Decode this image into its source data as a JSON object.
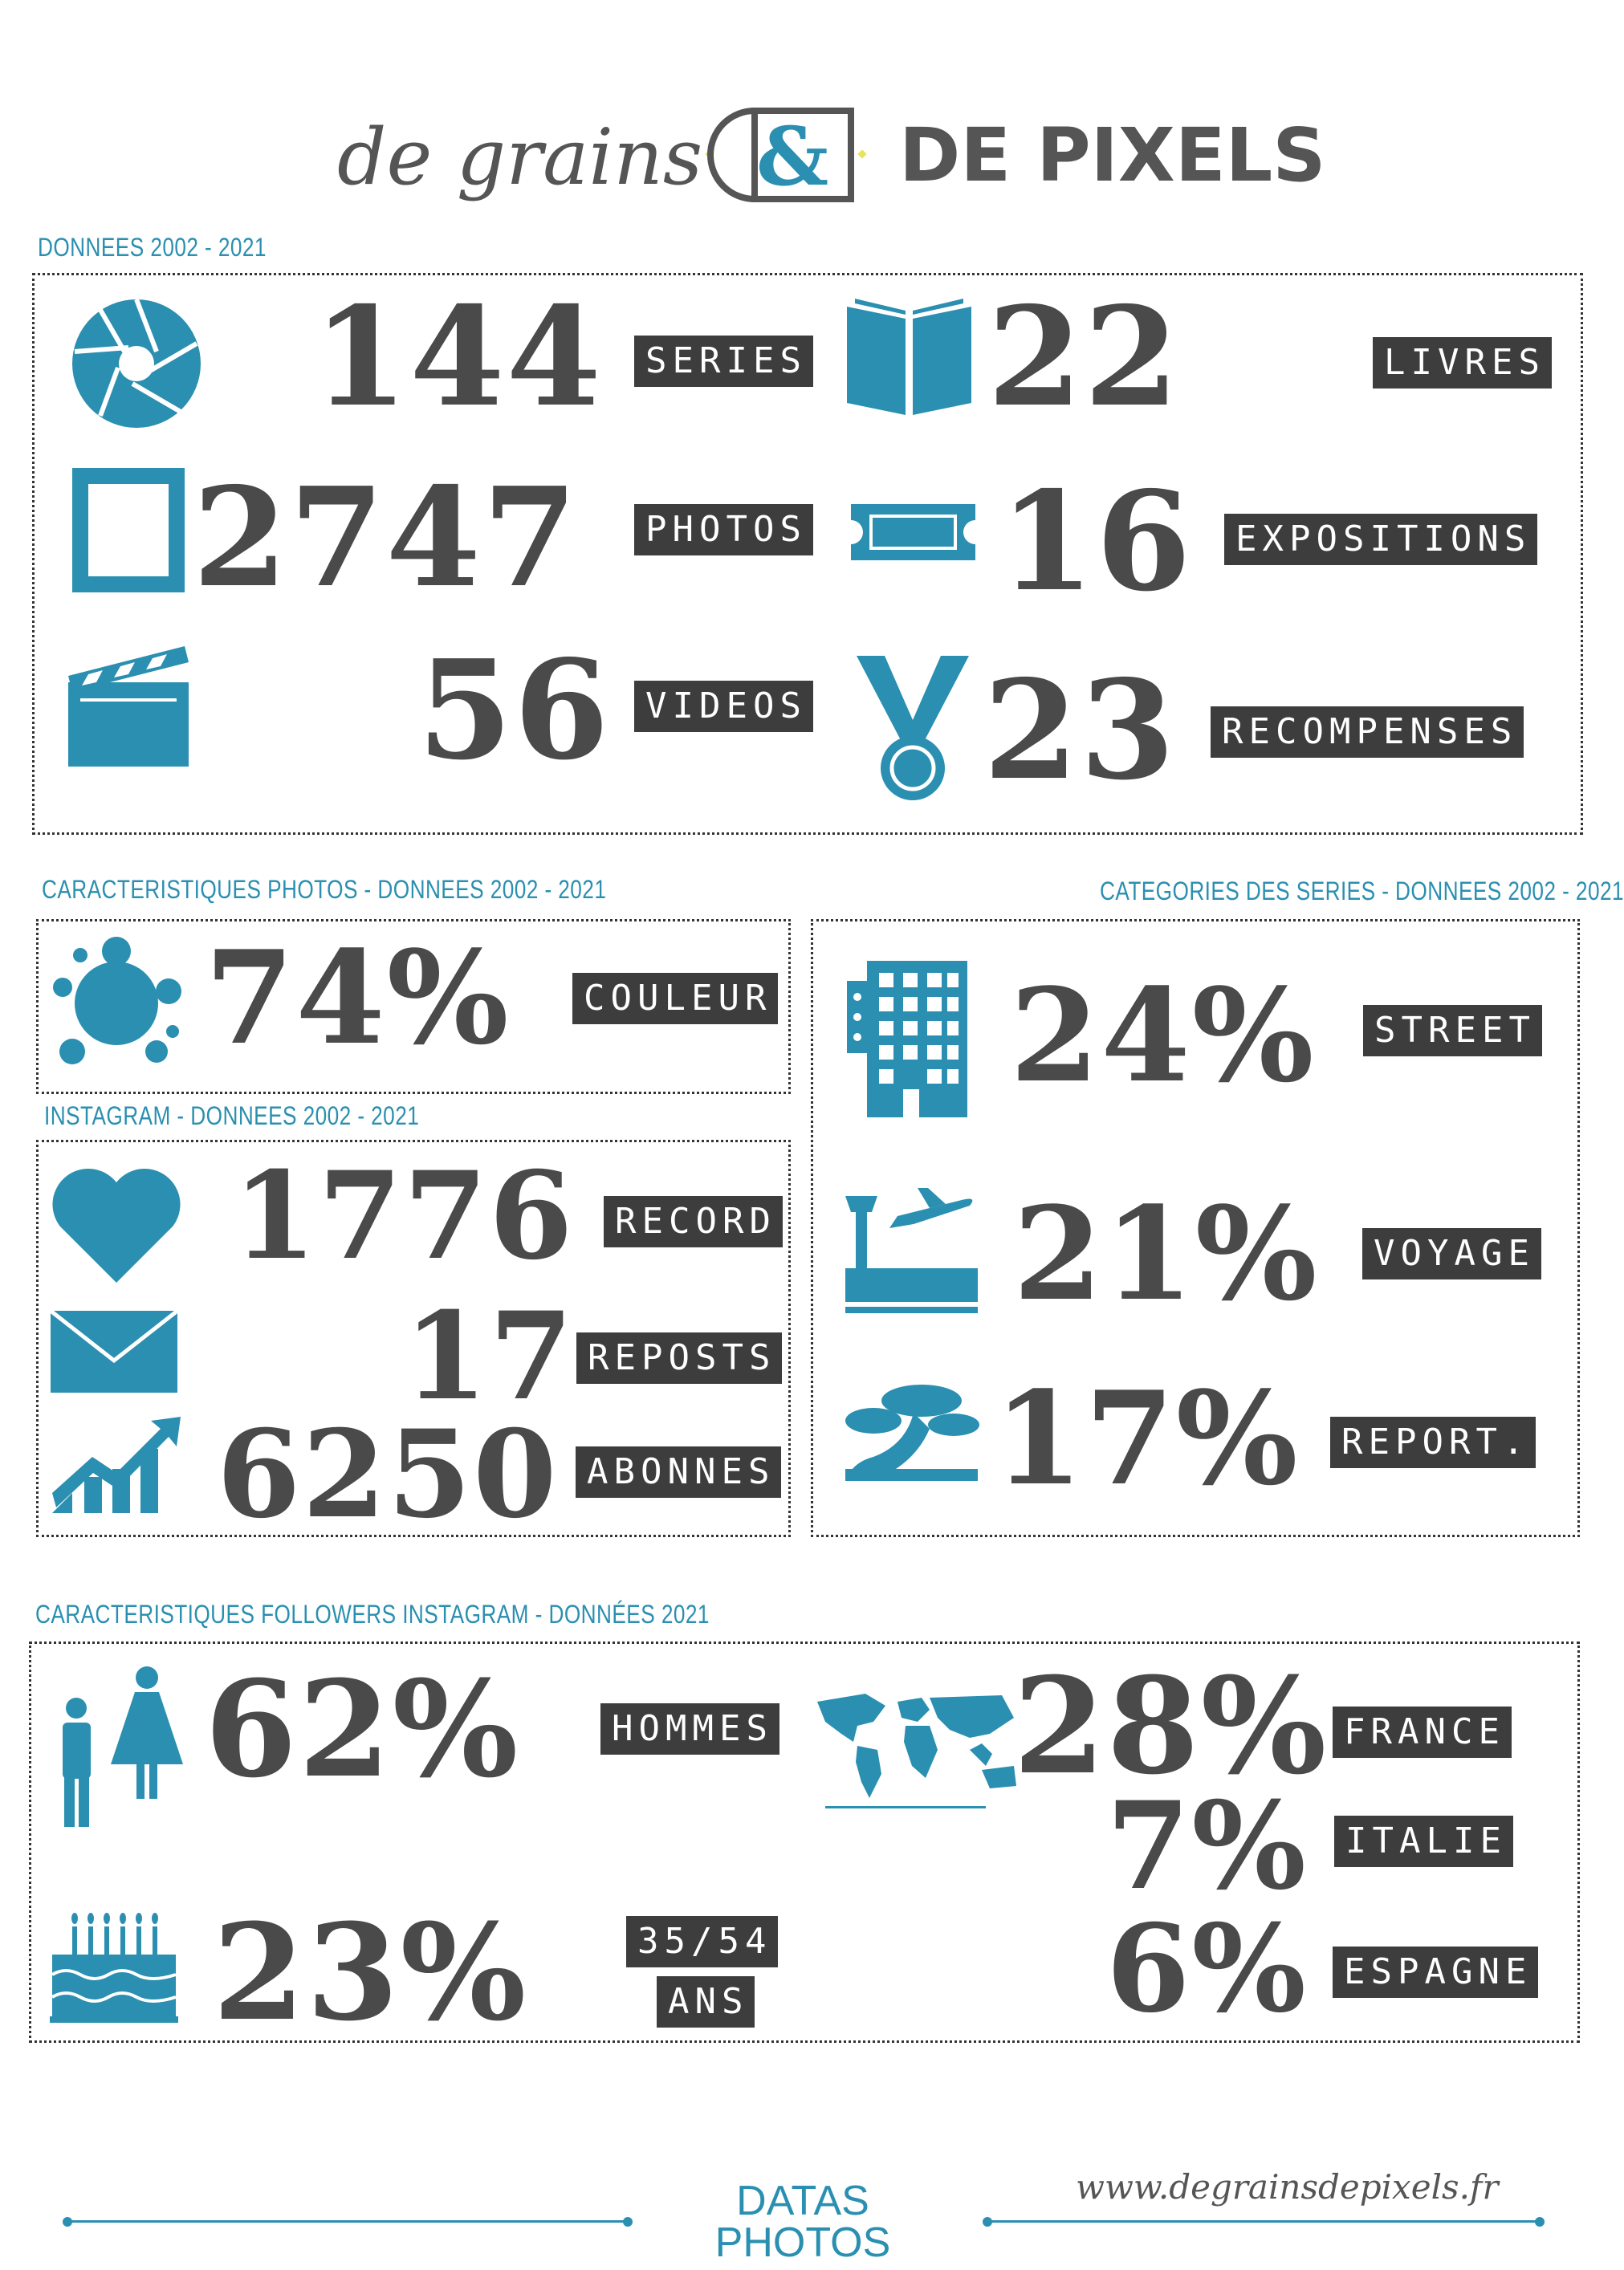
{
  "header": {
    "logo_left": "de grains",
    "logo_mark": "&",
    "logo_right": "DE PIXELS"
  },
  "sections": {
    "general": "DONNEES 2002 - 2021",
    "photos": "CARACTERISTIQUES PHOTOS - DONNEES 2002 - 2021",
    "categories": "CATEGORIES DES SERIES - DONNEES 2002 - 2021",
    "instagram": "INSTAGRAM - DONNEES 2002 - 2021",
    "followers": "CARACTERISTIQUES FOLLOWERS INSTAGRAM - DONNÉES 2021"
  },
  "stats": {
    "series": {
      "value": "144",
      "label": "SERIES",
      "icon": "aperture-icon"
    },
    "livres": {
      "value": "22",
      "label": "LIVRES",
      "icon": "book-icon"
    },
    "photos": {
      "value": "2747",
      "label": "PHOTOS",
      "icon": "frame-icon"
    },
    "expositions": {
      "value": "16",
      "label": "EXPOSITIONS",
      "icon": "ticket-icon"
    },
    "videos": {
      "value": "56",
      "label": "VIDEOS",
      "icon": "clapperboard-icon"
    },
    "recompenses": {
      "value": "23",
      "label": "RECOMPENSES",
      "icon": "medal-icon"
    },
    "couleur": {
      "value": "74%",
      "label": "COULEUR",
      "icon": "splash-icon"
    },
    "street": {
      "value": "24%",
      "label": "STREET",
      "icon": "building-icon"
    },
    "voyage": {
      "value": "21%",
      "label": "VOYAGE",
      "icon": "airport-icon"
    },
    "report": {
      "value": "17%",
      "label": "REPORT.",
      "icon": "bonsai-icon"
    },
    "record": {
      "value": "1776",
      "label": "RECORD",
      "icon": "heart-icon"
    },
    "reposts": {
      "value": "17",
      "label": "REPOSTS",
      "icon": "envelope-icon"
    },
    "abonnes": {
      "value": "6250",
      "label": "ABONNES",
      "icon": "growth-chart-icon"
    },
    "hommes": {
      "value": "62%",
      "label": "HOMMES",
      "icon": "man-woman-icon"
    },
    "age": {
      "value": "23%",
      "label_line1": "35/54",
      "label_line2": "ANS",
      "icon": "birthday-cake-icon"
    },
    "france": {
      "value": "28%",
      "label": "FRANCE",
      "icon": "world-map-icon"
    },
    "italie": {
      "value": "7%",
      "label": "ITALIE"
    },
    "espagne": {
      "value": "6%",
      "label": "ESPAGNE"
    }
  },
  "colors": {
    "accent": "#2a8fb0",
    "dark": "#3d3d3d",
    "text": "#4a4a4a"
  },
  "footer": {
    "title_line1": "DATAS",
    "title_line2": "PHOTOS",
    "url": "www.degrainsdepixels.fr"
  }
}
